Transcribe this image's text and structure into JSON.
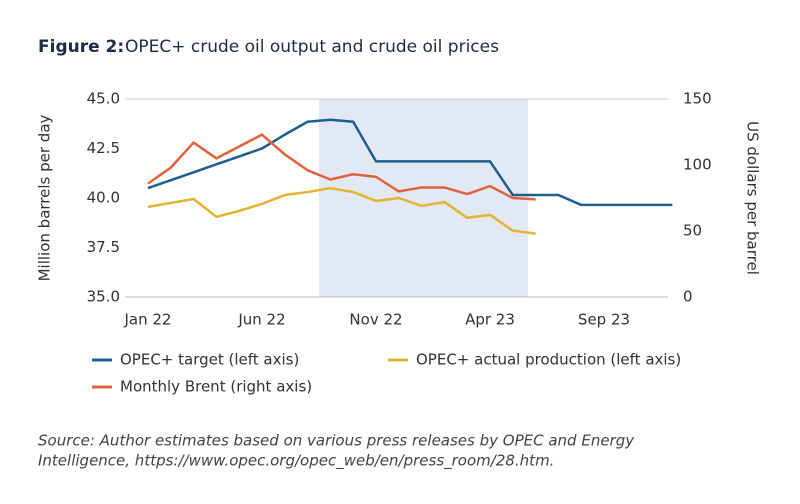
{
  "chart_data": {
    "type": "line",
    "title_label": "Figure 2:",
    "title": "OPEC+ crude oil output and crude oil prices",
    "ylabel": "Million barrels per day",
    "y2label": "US dollars per barrel",
    "categories": [
      "Jan 22",
      null,
      null,
      null,
      null,
      "Jun 22",
      null,
      null,
      null,
      null,
      "Nov 22",
      null,
      null,
      null,
      null,
      "Apr 23",
      null,
      null,
      null,
      null,
      "Sep 23",
      null,
      null,
      null
    ],
    "ylim": [
      35,
      45
    ],
    "yticks": [
      {
        "value": 35,
        "label": "35.0"
      },
      37.5,
      {
        "value": 40,
        "label": "40.0"
      },
      42.5,
      {
        "value": 45,
        "label": "45.0"
      }
    ],
    "y2lim": [
      0,
      150
    ],
    "y2ticks": [
      0,
      50,
      100,
      150
    ],
    "series": [
      {
        "name": "OPEC+ target (left axis)",
        "color": "#1f5f8f",
        "values": [
          40.5,
          40.9,
          41.3,
          41.7,
          42.1,
          42.5,
          43.2,
          43.85,
          43.95,
          43.85,
          41.85,
          41.85,
          41.85,
          41.85,
          41.85,
          41.85,
          40.15,
          40.15,
          40.15,
          39.65,
          39.65,
          39.65,
          39.65,
          39.65
        ]
      },
      {
        "name": "OPEC+ actual production (left axis)",
        "color": "#e0b531",
        "values": [
          39.55,
          39.75,
          39.95,
          39.05,
          39.35,
          39.7,
          40.15,
          40.3,
          40.5,
          40.3,
          39.85,
          40.0,
          39.6,
          39.8,
          39.0,
          39.15,
          38.35,
          38.2,
          null,
          null,
          null,
          null,
          null,
          null
        ]
      },
      {
        "name": "Monthly Brent (right axis)",
        "color": "#e0623a",
        "axis": "y2",
        "values": [
          86,
          98,
          117,
          105,
          114,
          123,
          108,
          96,
          89,
          93,
          91,
          80,
          83,
          83,
          78,
          84,
          75,
          74,
          null,
          null,
          null,
          null,
          null,
          null
        ]
      }
    ],
    "source": [
      "Source: Author estimates based on various press releases by OPEC and Energy",
      "Intelligence, https://www.opec.org/opec_web/en/press_room/28.htm."
    ]
  }
}
